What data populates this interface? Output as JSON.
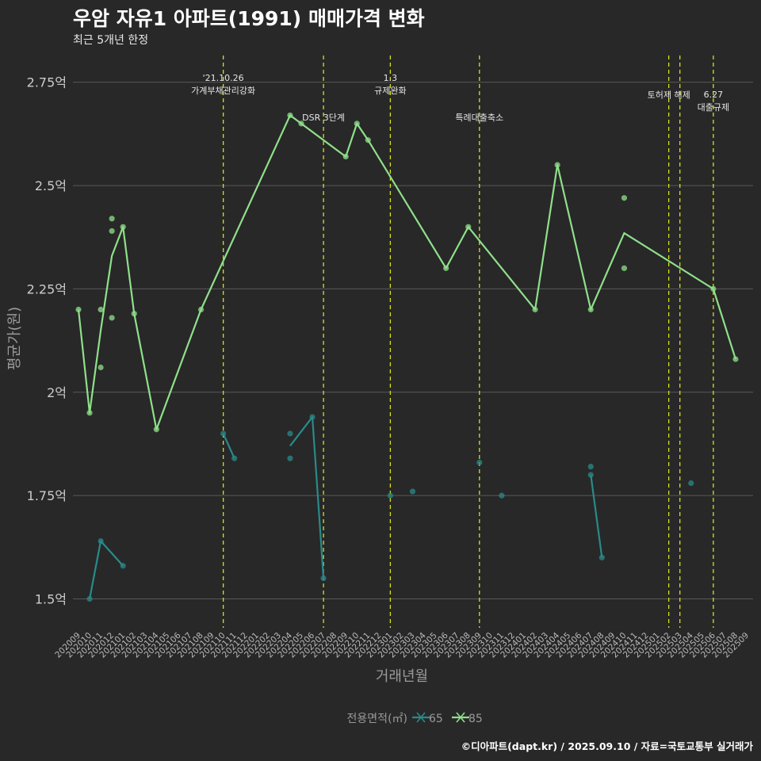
{
  "title": "우암 자유1 아파트(1991) 매매가격 변화",
  "subtitle": "최근 5개년 한정",
  "caption": "©디아파트(dapt.kr) / 2025.09.10 / 자료=국토교통부 실거래가",
  "colors": {
    "background": "#282828",
    "series_65": "#2a8a8a",
    "series_85": "#8fe08a",
    "event_line": "#d4e01a",
    "grid": "#595959",
    "text": "#cccccc"
  },
  "chart_data": {
    "type": "line",
    "title": "우암 자유1 아파트(1991) 매매가격 변화",
    "subtitle": "최근 5개년 한정",
    "xlabel": "거래년월",
    "ylabel": "평균가(원)",
    "ylim": [
      1.43,
      2.83
    ],
    "yticks": [
      {
        "value": 1.5,
        "label": "1.5억"
      },
      {
        "value": 1.75,
        "label": "1.75억"
      },
      {
        "value": 2.0,
        "label": "2억"
      },
      {
        "value": 2.25,
        "label": "2.25억"
      },
      {
        "value": 2.5,
        "label": "2.5억"
      },
      {
        "value": 2.75,
        "label": "2.75억"
      }
    ],
    "xticks": [
      "202009",
      "202010",
      "202011",
      "202012",
      "202101",
      "202102",
      "202103",
      "202104",
      "202105",
      "202106",
      "202107",
      "202108",
      "202109",
      "202110",
      "202111",
      "202112",
      "202201",
      "202202",
      "202203",
      "202204",
      "202205",
      "202206",
      "202207",
      "202208",
      "202209",
      "202210",
      "202211",
      "202212",
      "202301",
      "202302",
      "202303",
      "202304",
      "202305",
      "202306",
      "202307",
      "202308",
      "202309",
      "202310",
      "202311",
      "202312",
      "202401",
      "202402",
      "202403",
      "202404",
      "202405",
      "202406",
      "202407",
      "202408",
      "202409",
      "202410",
      "202411",
      "202412",
      "202501",
      "202502",
      "202503",
      "202504",
      "202505",
      "202506",
      "202507",
      "202508",
      "202509"
    ],
    "legend": {
      "title": "전용면적(㎡)",
      "entries": [
        "65",
        "85"
      ],
      "position": "bottom"
    },
    "events": [
      {
        "x": "202110",
        "label": "'21.10.26\n가계부채관리강화",
        "label_y": 2.73
      },
      {
        "x": "202207",
        "label": "DSR 3단계",
        "label_y": 2.665
      },
      {
        "x": "202301",
        "label": "1.3\n규제완화",
        "label_y": 2.73
      },
      {
        "x": "202309",
        "label": "특례대출축소",
        "label_y": 2.665
      },
      {
        "x": "202502",
        "label": "토허제 해제",
        "label_y": 2.72
      },
      {
        "x": "202503",
        "label": "",
        "label_y": 2.72
      },
      {
        "x": "202506",
        "label": "6.27\n대출규제",
        "label_y": 2.69
      }
    ],
    "series": [
      {
        "name": "65",
        "line": [
          {
            "x": "202010",
            "y": 1.5
          },
          {
            "x": "202011",
            "y": 1.64
          },
          {
            "x": "202101",
            "y": 1.58
          },
          null,
          {
            "x": "202110",
            "y": 1.9
          },
          {
            "x": "202111",
            "y": 1.84
          },
          null,
          {
            "x": "202204",
            "y": 1.87
          },
          {
            "x": "202206",
            "y": 1.94
          },
          {
            "x": "202207",
            "y": 1.55
          },
          null,
          {
            "x": "202407",
            "y": 1.8
          },
          {
            "x": "202408",
            "y": 1.6
          }
        ],
        "points": [
          {
            "x": "202010",
            "y": 1.5
          },
          {
            "x": "202011",
            "y": 1.64
          },
          {
            "x": "202101",
            "y": 1.58
          },
          {
            "x": "202110",
            "y": 1.9
          },
          {
            "x": "202111",
            "y": 1.84
          },
          {
            "x": "202204",
            "y": 1.9
          },
          {
            "x": "202204",
            "y": 1.84
          },
          {
            "x": "202206",
            "y": 1.94
          },
          {
            "x": "202207",
            "y": 1.55
          },
          {
            "x": "202301",
            "y": 1.75
          },
          {
            "x": "202303",
            "y": 1.76
          },
          {
            "x": "202309",
            "y": 1.83
          },
          {
            "x": "202311",
            "y": 1.75
          },
          {
            "x": "202407",
            "y": 1.82
          },
          {
            "x": "202407",
            "y": 1.8
          },
          {
            "x": "202408",
            "y": 1.6
          },
          {
            "x": "202504",
            "y": 1.78
          }
        ]
      },
      {
        "name": "85",
        "line": [
          {
            "x": "202009",
            "y": 2.2
          },
          {
            "x": "202010",
            "y": 1.95
          },
          {
            "x": "202011",
            "y": 2.15
          },
          {
            "x": "202012",
            "y": 2.33
          },
          {
            "x": "202101",
            "y": 2.4
          },
          {
            "x": "202102",
            "y": 2.19
          },
          {
            "x": "202104",
            "y": 1.91
          },
          {
            "x": "202108",
            "y": 2.2
          },
          {
            "x": "202204",
            "y": 2.67
          },
          {
            "x": "202205",
            "y": 2.65
          },
          {
            "x": "202209",
            "y": 2.57
          },
          {
            "x": "202210",
            "y": 2.65
          },
          {
            "x": "202211",
            "y": 2.61
          },
          {
            "x": "202306",
            "y": 2.3
          },
          {
            "x": "202308",
            "y": 2.4
          },
          {
            "x": "202402",
            "y": 2.2
          },
          {
            "x": "202404",
            "y": 2.55
          },
          {
            "x": "202407",
            "y": 2.2
          },
          {
            "x": "202410",
            "y": 2.385
          },
          {
            "x": "202506",
            "y": 2.25
          },
          {
            "x": "202508",
            "y": 2.08
          }
        ],
        "points": [
          {
            "x": "202009",
            "y": 2.2
          },
          {
            "x": "202010",
            "y": 1.95
          },
          {
            "x": "202011",
            "y": 2.2
          },
          {
            "x": "202011",
            "y": 2.06
          },
          {
            "x": "202012",
            "y": 2.42
          },
          {
            "x": "202012",
            "y": 2.39
          },
          {
            "x": "202012",
            "y": 2.18
          },
          {
            "x": "202101",
            "y": 2.4
          },
          {
            "x": "202102",
            "y": 2.19
          },
          {
            "x": "202104",
            "y": 1.91
          },
          {
            "x": "202108",
            "y": 2.2
          },
          {
            "x": "202204",
            "y": 2.67
          },
          {
            "x": "202205",
            "y": 2.65
          },
          {
            "x": "202209",
            "y": 2.57
          },
          {
            "x": "202210",
            "y": 2.65
          },
          {
            "x": "202211",
            "y": 2.61
          },
          {
            "x": "202306",
            "y": 2.3
          },
          {
            "x": "202308",
            "y": 2.4
          },
          {
            "x": "202402",
            "y": 2.2
          },
          {
            "x": "202404",
            "y": 2.55
          },
          {
            "x": "202407",
            "y": 2.2
          },
          {
            "x": "202410",
            "y": 2.47
          },
          {
            "x": "202410",
            "y": 2.3
          },
          {
            "x": "202506",
            "y": 2.25
          },
          {
            "x": "202508",
            "y": 2.08
          }
        ]
      }
    ]
  }
}
